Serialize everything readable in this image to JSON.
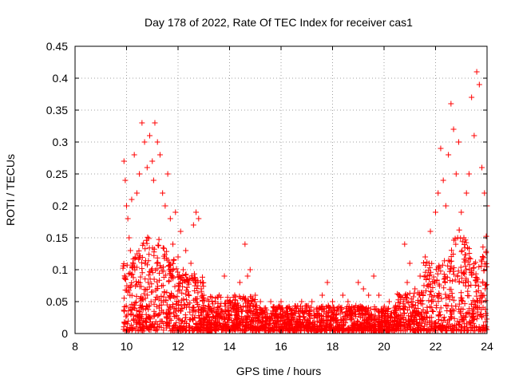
{
  "chart_data": {
    "type": "scatter",
    "title": "Day 178 of 2022, Rate Of TEC Index for receiver cas1",
    "xlabel": "GPS time / hours",
    "ylabel": "ROTI / TECUs",
    "xlim": [
      8,
      24
    ],
    "ylim": [
      0,
      0.45
    ],
    "xticks": [
      "8",
      "10",
      "12",
      "14",
      "16",
      "18",
      "20",
      "22",
      "24"
    ],
    "yticks": [
      "0",
      "0.05",
      "0.1",
      "0.15",
      "0.2",
      "0.25",
      "0.3",
      "0.35",
      "0.4",
      "0.45"
    ],
    "grid": true,
    "marker": "+",
    "colors": {
      "points": "#ff0000",
      "grid": "#a0a0a0",
      "axis": "#000000"
    },
    "series": [
      {
        "x": [
          9.9,
          9.95,
          10.0,
          10.05,
          10.1,
          10.15,
          10.2,
          10.3,
          10.4,
          10.5,
          10.6,
          10.7,
          10.8,
          10.9,
          11.0,
          11.05,
          11.1,
          11.2,
          11.3,
          11.4,
          11.5,
          11.6,
          11.7,
          11.8,
          11.9,
          12.0,
          12.1,
          12.2,
          12.3,
          12.4,
          12.5,
          12.6,
          12.7,
          12.8,
          12.9,
          13.0,
          13.2,
          13.4,
          13.6,
          13.8,
          14.0,
          14.2,
          14.4,
          14.6,
          14.7,
          14.8,
          15.0,
          15.2,
          15.4,
          15.6,
          15.8,
          16.0,
          16.2,
          16.4,
          16.6,
          16.8,
          17.0,
          17.2,
          17.4,
          17.6,
          17.8,
          18.0,
          18.2,
          18.4,
          18.6,
          18.8,
          19.0,
          19.2,
          19.4,
          19.6,
          19.8,
          20.0,
          20.2,
          20.4,
          20.6,
          20.8,
          20.9,
          21.0,
          21.2,
          21.4,
          21.6,
          21.8,
          22.0,
          22.1,
          22.2,
          22.3,
          22.4,
          22.5,
          22.6,
          22.7,
          22.8,
          22.9,
          23.0,
          23.1,
          23.2,
          23.3,
          23.4,
          23.5,
          23.6,
          23.7,
          23.8,
          23.9,
          24.0
        ],
        "y": [
          0.27,
          0.24,
          0.2,
          0.18,
          0.15,
          0.13,
          0.21,
          0.28,
          0.22,
          0.25,
          0.33,
          0.3,
          0.26,
          0.31,
          0.27,
          0.24,
          0.33,
          0.3,
          0.28,
          0.22,
          0.2,
          0.25,
          0.18,
          0.14,
          0.19,
          0.12,
          0.16,
          0.1,
          0.13,
          0.08,
          0.11,
          0.17,
          0.19,
          0.18,
          0.07,
          0.06,
          0.05,
          0.04,
          0.06,
          0.09,
          0.05,
          0.06,
          0.08,
          0.14,
          0.09,
          0.1,
          0.06,
          0.05,
          0.04,
          0.05,
          0.04,
          0.05,
          0.04,
          0.03,
          0.04,
          0.05,
          0.04,
          0.05,
          0.04,
          0.06,
          0.08,
          0.05,
          0.04,
          0.06,
          0.05,
          0.04,
          0.08,
          0.07,
          0.06,
          0.09,
          0.06,
          0.04,
          0.05,
          0.04,
          0.06,
          0.14,
          0.08,
          0.11,
          0.07,
          0.09,
          0.12,
          0.16,
          0.19,
          0.22,
          0.29,
          0.24,
          0.2,
          0.28,
          0.36,
          0.32,
          0.25,
          0.3,
          0.19,
          0.15,
          0.22,
          0.25,
          0.37,
          0.31,
          0.41,
          0.39,
          0.26,
          0.22,
          0.2
        ]
      }
    ]
  }
}
